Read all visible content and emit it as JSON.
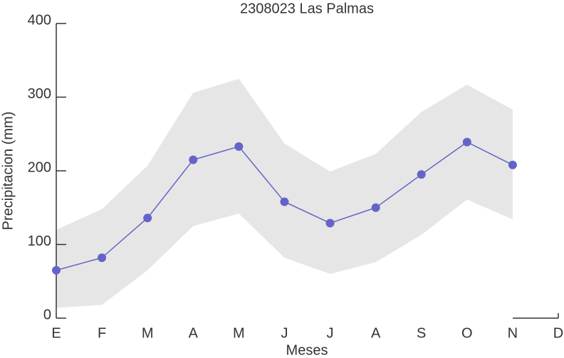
{
  "chart_data": {
    "type": "line",
    "title": "2308023 Las Palmas",
    "x_label": "Meses",
    "y_label": "Precipitacion (mm)",
    "categories": [
      "E",
      "F",
      "M",
      "A",
      "M",
      "J",
      "J",
      "A",
      "S",
      "O",
      "N",
      "D"
    ],
    "series": [
      {
        "color": "#6464c8",
        "values": [
          65,
          82,
          136,
          215,
          233,
          158,
          129,
          150,
          195,
          239,
          208,
          null
        ]
      }
    ],
    "band": {
      "color": "#e6e6e6",
      "upper": [
        120,
        148,
        207,
        306,
        325,
        237,
        199,
        223,
        280,
        317,
        283,
        null
      ],
      "lower": [
        14,
        18,
        65,
        125,
        142,
        82,
        60,
        76,
        113,
        161,
        134,
        null
      ]
    },
    "ylim": [
      0,
      400
    ],
    "yticks": [
      0,
      100,
      200,
      300,
      400
    ]
  }
}
